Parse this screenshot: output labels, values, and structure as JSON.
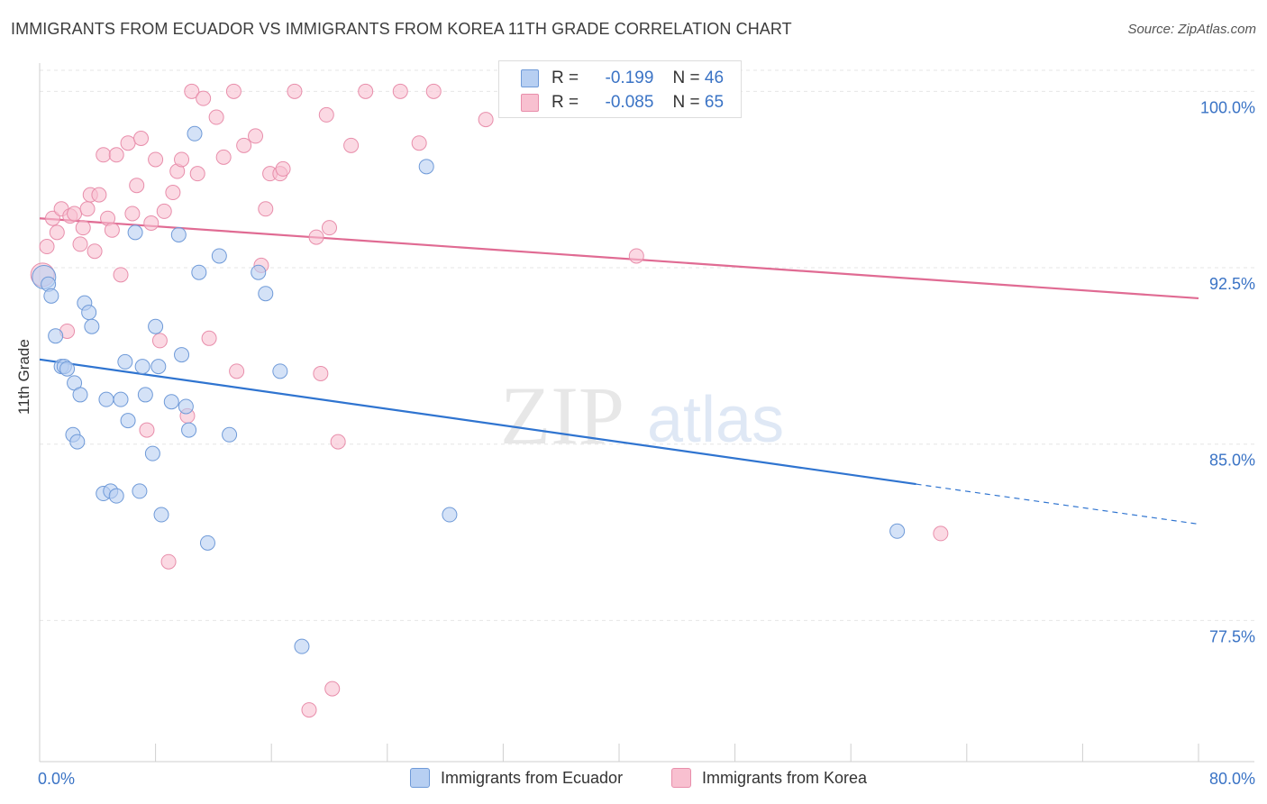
{
  "title": "IMMIGRANTS FROM ECUADOR VS IMMIGRANTS FROM KOREA 11TH GRADE CORRELATION CHART",
  "source": "Source: ZipAtlas.com",
  "watermark": {
    "zip": "ZIP",
    "atlas": "atlas"
  },
  "legend": {
    "r_label": "R =",
    "n_label": "N =",
    "rows": [
      {
        "r": "-0.199",
        "n": "46"
      },
      {
        "r": "-0.085",
        "n": "65"
      }
    ]
  },
  "colors": {
    "ecuador_fill": "#b7cff2",
    "ecuador_stroke": "#6f9ad8",
    "ecuador_line": "#2f74d0",
    "korea_fill": "#f8c0d0",
    "korea_stroke": "#e88eab",
    "korea_line": "#e06b93",
    "axis_text": "#3a73c5",
    "grid": "#e6e6e6"
  },
  "chart_data": {
    "type": "scatter",
    "title": "IMMIGRANTS FROM ECUADOR VS IMMIGRANTS FROM KOREA 11TH GRADE CORRELATION CHART",
    "xlabel": "",
    "ylabel": "11th Grade",
    "xlim": [
      0,
      80
    ],
    "ylim": [
      71.5,
      101.2
    ],
    "x_tick_labels": [
      {
        "value": 0,
        "label": "0.0%"
      },
      {
        "value": 80,
        "label": "80.0%"
      }
    ],
    "y_tick_labels": [
      {
        "value": 100.0,
        "label": "100.0%"
      },
      {
        "value": 92.5,
        "label": "92.5%"
      },
      {
        "value": 85.0,
        "label": "85.0%"
      },
      {
        "value": 77.5,
        "label": "77.5%"
      }
    ],
    "x_minor_ticks": [
      0,
      8,
      16,
      24,
      32,
      40,
      48,
      56,
      64,
      72,
      80
    ],
    "grid": true,
    "series": [
      {
        "name": "Immigrants from Ecuador",
        "r": -0.199,
        "n": 46,
        "trend": {
          "x0": 0,
          "y0": 88.6,
          "x1": 60.5,
          "y1": 83.3,
          "dash_to_x": 80,
          "dash_to_y": 81.6
        },
        "points": [
          [
            0.3,
            92.1
          ],
          [
            0.6,
            91.8
          ],
          [
            0.8,
            91.3
          ],
          [
            1.1,
            89.6
          ],
          [
            1.5,
            88.3
          ],
          [
            1.7,
            88.3
          ],
          [
            1.9,
            88.2
          ],
          [
            2.3,
            85.4
          ],
          [
            2.4,
            87.6
          ],
          [
            2.6,
            85.1
          ],
          [
            2.8,
            87.1
          ],
          [
            3.1,
            91.0
          ],
          [
            3.4,
            90.6
          ],
          [
            3.6,
            90.0
          ],
          [
            4.4,
            82.9
          ],
          [
            4.6,
            86.9
          ],
          [
            4.9,
            83.0
          ],
          [
            5.3,
            82.8
          ],
          [
            5.6,
            86.9
          ],
          [
            5.9,
            88.5
          ],
          [
            6.1,
            86.0
          ],
          [
            6.6,
            94.0
          ],
          [
            6.9,
            83.0
          ],
          [
            7.1,
            88.3
          ],
          [
            7.3,
            87.1
          ],
          [
            7.8,
            84.6
          ],
          [
            8.0,
            90.0
          ],
          [
            8.2,
            88.3
          ],
          [
            8.4,
            82.0
          ],
          [
            9.1,
            86.8
          ],
          [
            9.6,
            93.9
          ],
          [
            9.8,
            88.8
          ],
          [
            10.1,
            86.6
          ],
          [
            10.3,
            85.6
          ],
          [
            10.7,
            98.2
          ],
          [
            11.0,
            92.3
          ],
          [
            11.6,
            80.8
          ],
          [
            12.4,
            93.0
          ],
          [
            13.1,
            85.4
          ],
          [
            15.1,
            92.3
          ],
          [
            15.6,
            91.4
          ],
          [
            16.6,
            88.1
          ],
          [
            18.1,
            76.4
          ],
          [
            26.7,
            96.8
          ],
          [
            28.3,
            82.0
          ],
          [
            59.2,
            81.3
          ]
        ]
      },
      {
        "name": "Immigrants from Korea",
        "r": -0.085,
        "n": 65,
        "trend": {
          "x0": 0,
          "y0": 94.6,
          "x1": 80,
          "y1": 91.2
        },
        "points": [
          [
            0.2,
            92.2
          ],
          [
            0.5,
            93.4
          ],
          [
            0.9,
            94.6
          ],
          [
            1.2,
            94.0
          ],
          [
            1.5,
            95.0
          ],
          [
            1.9,
            89.8
          ],
          [
            2.1,
            94.7
          ],
          [
            2.4,
            94.8
          ],
          [
            2.8,
            93.5
          ],
          [
            3.0,
            94.2
          ],
          [
            3.3,
            95.0
          ],
          [
            3.5,
            95.6
          ],
          [
            3.8,
            93.2
          ],
          [
            4.1,
            95.6
          ],
          [
            4.4,
            97.3
          ],
          [
            4.7,
            94.6
          ],
          [
            5.0,
            94.1
          ],
          [
            5.3,
            97.3
          ],
          [
            5.6,
            92.2
          ],
          [
            6.1,
            97.8
          ],
          [
            6.4,
            94.8
          ],
          [
            6.7,
            96.0
          ],
          [
            7.0,
            98.0
          ],
          [
            7.4,
            85.6
          ],
          [
            7.7,
            94.4
          ],
          [
            8.0,
            97.1
          ],
          [
            8.3,
            89.4
          ],
          [
            8.6,
            94.9
          ],
          [
            8.9,
            80.0
          ],
          [
            9.2,
            95.7
          ],
          [
            9.5,
            96.6
          ],
          [
            9.8,
            97.1
          ],
          [
            10.2,
            86.2
          ],
          [
            10.5,
            100.0
          ],
          [
            10.9,
            96.5
          ],
          [
            11.3,
            99.7
          ],
          [
            11.7,
            89.5
          ],
          [
            12.2,
            98.9
          ],
          [
            12.7,
            97.2
          ],
          [
            13.4,
            100.0
          ],
          [
            13.6,
            88.1
          ],
          [
            14.1,
            97.7
          ],
          [
            14.9,
            98.1
          ],
          [
            15.3,
            92.6
          ],
          [
            15.6,
            95.0
          ],
          [
            15.9,
            96.5
          ],
          [
            16.6,
            96.5
          ],
          [
            16.8,
            96.7
          ],
          [
            17.6,
            100.0
          ],
          [
            18.6,
            73.7
          ],
          [
            19.1,
            93.8
          ],
          [
            19.4,
            88.0
          ],
          [
            19.8,
            99.0
          ],
          [
            20.0,
            94.2
          ],
          [
            20.2,
            74.6
          ],
          [
            20.6,
            85.1
          ],
          [
            21.5,
            97.7
          ],
          [
            22.5,
            100.0
          ],
          [
            24.9,
            100.0
          ],
          [
            26.2,
            97.8
          ],
          [
            27.2,
            100.0
          ],
          [
            30.8,
            98.8
          ],
          [
            39.2,
            100.0
          ],
          [
            41.2,
            93.0
          ],
          [
            62.2,
            81.2
          ]
        ]
      }
    ]
  },
  "bottom_legend": [
    "Immigrants from Ecuador",
    "Immigrants from Korea"
  ]
}
